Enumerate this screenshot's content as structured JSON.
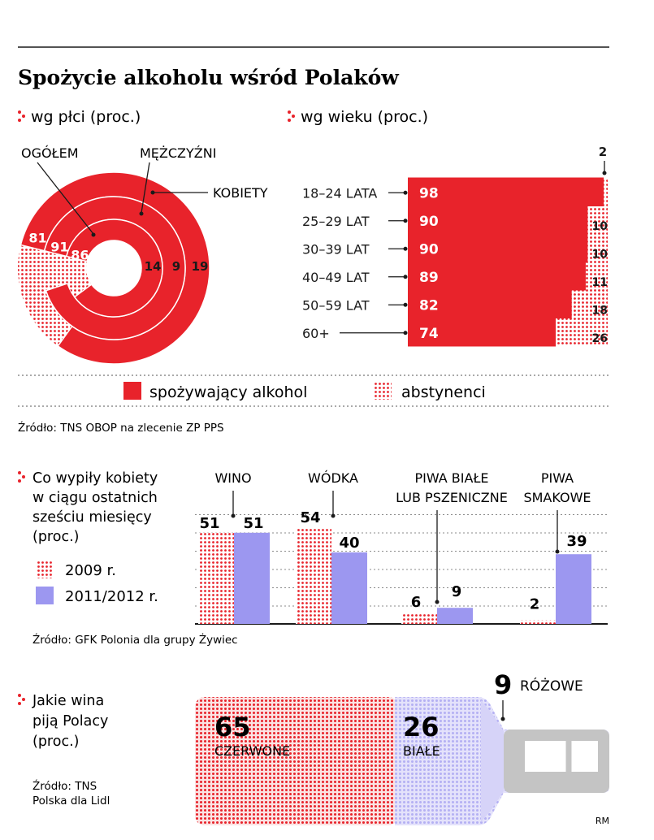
{
  "colors": {
    "red": "#e8232b",
    "lavender": "#9c97f0",
    "lavender_light": "#c9c6f7",
    "dot_red": "#e8232b",
    "gray": "#bdbdbd",
    "text": "#1a1a1a"
  },
  "header": {
    "title": "Spożycie alkoholu wśród Polaków"
  },
  "gender_section": {
    "heading": "wg płci (proc.)"
  },
  "age_section": {
    "heading": "wg wieku (proc.)"
  },
  "legend": {
    "drinking": "spożywający alkohol",
    "abstinent": "abstynenci"
  },
  "source1": "Źródło: TNS OBOP na zlecenie ZP PPS",
  "chart_data": [
    {
      "type": "donut",
      "title": "wg płci (proc.)",
      "categories": [
        "OGÓŁEM",
        "MĘŻCZYŹNI",
        "KOBIETY"
      ],
      "series": [
        {
          "name": "spożywający alkohol",
          "values": [
            86,
            91,
            81
          ]
        },
        {
          "name": "abstynenci",
          "values": [
            14,
            9,
            19
          ]
        }
      ]
    },
    {
      "type": "bar",
      "orientation": "horizontal-stacked",
      "title": "wg wieku (proc.)",
      "categories": [
        "18–24 LATA",
        "25–29 LAT",
        "30–39 LAT",
        "40–49 LAT",
        "50–59 LAT",
        "60+"
      ],
      "series": [
        {
          "name": "spożywający alkohol",
          "values": [
            98,
            90,
            90,
            89,
            82,
            74
          ]
        },
        {
          "name": "abstynenci",
          "values": [
            2,
            10,
            10,
            11,
            18,
            26
          ]
        }
      ],
      "xlim": [
        0,
        100
      ]
    },
    {
      "type": "bar",
      "title": "Co wypiły kobiety w ciągu ostatnich sześciu miesięcy (proc.)",
      "categories": [
        "WINO",
        "WÓDKA",
        "PIWA BIAŁE LUB PSZENICZNE",
        "PIWA SMAKOWE"
      ],
      "series": [
        {
          "name": "2009 r.",
          "values": [
            51,
            54,
            6,
            2
          ]
        },
        {
          "name": "2011/2012 r.",
          "values": [
            51,
            40,
            9,
            39
          ]
        }
      ],
      "ylim": [
        0,
        60
      ]
    },
    {
      "type": "bar",
      "orientation": "horizontal-stacked",
      "title": "Jakie wina piją Polacy (proc.)",
      "categories": [
        "CZERWONE",
        "BIAŁE",
        "RÓŻOWE"
      ],
      "values": [
        65,
        26,
        9
      ]
    }
  ],
  "women_section": {
    "heading_lines": [
      "Co wypiły kobiety",
      "w ciągu ostatnich",
      "sześciu miesięcy",
      "(proc.)"
    ],
    "legend_2009": "2009 r.",
    "legend_2011": "2011/2012 r.",
    "cat_labels": [
      [
        "WINO"
      ],
      [
        "WÓDKA"
      ],
      [
        "PIWA BIAŁE",
        "LUB PSZENICZNE"
      ],
      [
        "PIWA",
        "SMAKOWE"
      ]
    ],
    "source": "Źródło: GFK Polonia dla grupy Żywiec"
  },
  "wine_section": {
    "heading_lines": [
      "Jakie wina",
      "piją Polacy",
      "(proc.)"
    ],
    "source_lines": [
      "Źródło: TNS",
      "Polska dla Lidl"
    ],
    "red_value": "65",
    "red_label": "CZERWONE",
    "white_value": "26",
    "white_label": "BIAŁE",
    "rose_value": "9",
    "rose_label": "RÓŻOWE",
    "author": "RM"
  }
}
